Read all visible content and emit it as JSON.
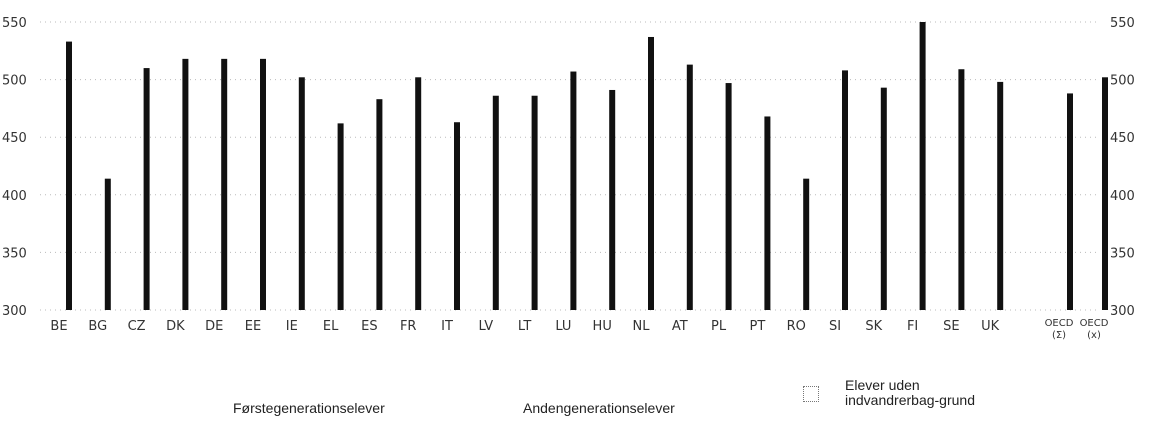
{
  "chart_data": {
    "type": "bar",
    "ylim": [
      300,
      550
    ],
    "yticks": [
      "300",
      "350",
      "400",
      "450",
      "500",
      "550"
    ],
    "categories": [
      "BE",
      "BG",
      "CZ",
      "DK",
      "DE",
      "EE",
      "IE",
      "EL",
      "ES",
      "FR",
      "IT",
      "LV",
      "LT",
      "LU",
      "HU",
      "NL",
      "AT",
      "PL",
      "PT",
      "RO",
      "SI",
      "SK",
      "FI",
      "SE",
      "UK",
      "OECD (Σ)",
      "OECD (x)"
    ],
    "series": [
      {
        "name": "Elever uden indvandrerbag-grund",
        "values": [
          533,
          414,
          510,
          518,
          518,
          518,
          502,
          462,
          483,
          502,
          463,
          486,
          486,
          507,
          491,
          537,
          513,
          497,
          468,
          414,
          508,
          493,
          550,
          509,
          498,
          488,
          502
        ]
      }
    ],
    "legend": [
      "Førstegenerationselever",
      "Andengenerationselever",
      "Elever uden indvandrerbag-grund"
    ],
    "grid": true
  }
}
